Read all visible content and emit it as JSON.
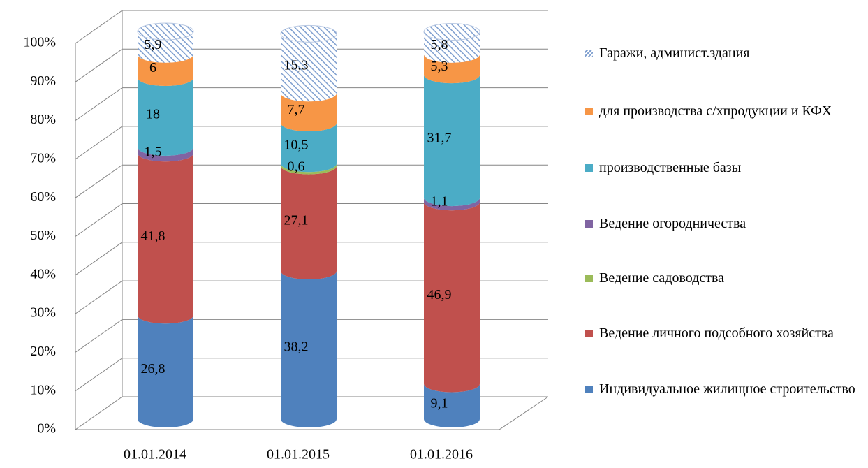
{
  "chart_data": {
    "type": "bar3d_stacked",
    "categories": [
      "01.01.2014",
      "01.01.2015",
      "01.01.2016"
    ],
    "ylim": [
      0,
      100
    ],
    "yticks": [
      {
        "value": 0,
        "label": "0%"
      },
      {
        "value": 10,
        "label": "10%"
      },
      {
        "value": 20,
        "label": "20%"
      },
      {
        "value": 30,
        "label": "30%"
      },
      {
        "value": 40,
        "label": "40%"
      },
      {
        "value": 50,
        "label": "50%"
      },
      {
        "value": 60,
        "label": "60%"
      },
      {
        "value": 70,
        "label": "70%"
      },
      {
        "value": 80,
        "label": "80%"
      },
      {
        "value": 90,
        "label": "90%"
      },
      {
        "value": 100,
        "label": "100%"
      }
    ],
    "grid": true,
    "legend": "right",
    "series": [
      {
        "name": "Индивидуальное жилищное строительство",
        "color": "#4f81bd",
        "values": [
          26.8,
          38.2,
          9.1
        ],
        "value_labels": [
          "26,8",
          "38,2",
          "9,1"
        ]
      },
      {
        "name": "Ведение личного подсобного хозяйства",
        "color": "#c0504d",
        "values": [
          41.8,
          27.1,
          46.9
        ],
        "value_labels": [
          "41,8",
          "27,1",
          "46,9"
        ]
      },
      {
        "name": "Ведение садоводства",
        "color": "#9bbb59",
        "values": [
          0,
          0.6,
          0
        ],
        "value_labels": [
          null,
          "0,6",
          null
        ]
      },
      {
        "name": "Ведение огородничества",
        "color": "#8064a2",
        "values": [
          1.5,
          0,
          1.1
        ],
        "value_labels": [
          "1,5",
          null,
          "1,1"
        ]
      },
      {
        "name": "производственные базы",
        "color": "#4bacc6",
        "values": [
          18,
          10.5,
          31.7
        ],
        "value_labels": [
          "18",
          "10,5",
          "31,7"
        ]
      },
      {
        "name": "для производства с/хпродукции и КФХ",
        "color": "#f79646",
        "values": [
          6,
          7.7,
          5.3
        ],
        "value_labels": [
          "6",
          "7,7",
          "5,3"
        ]
      },
      {
        "name": "Гаражи, админист.здания",
        "color": "#4f81bd",
        "pattern": "hatch",
        "values": [
          5.9,
          15.3,
          5.8
        ],
        "value_labels": [
          "5,9",
          "15,3",
          "5,8"
        ]
      }
    ]
  }
}
